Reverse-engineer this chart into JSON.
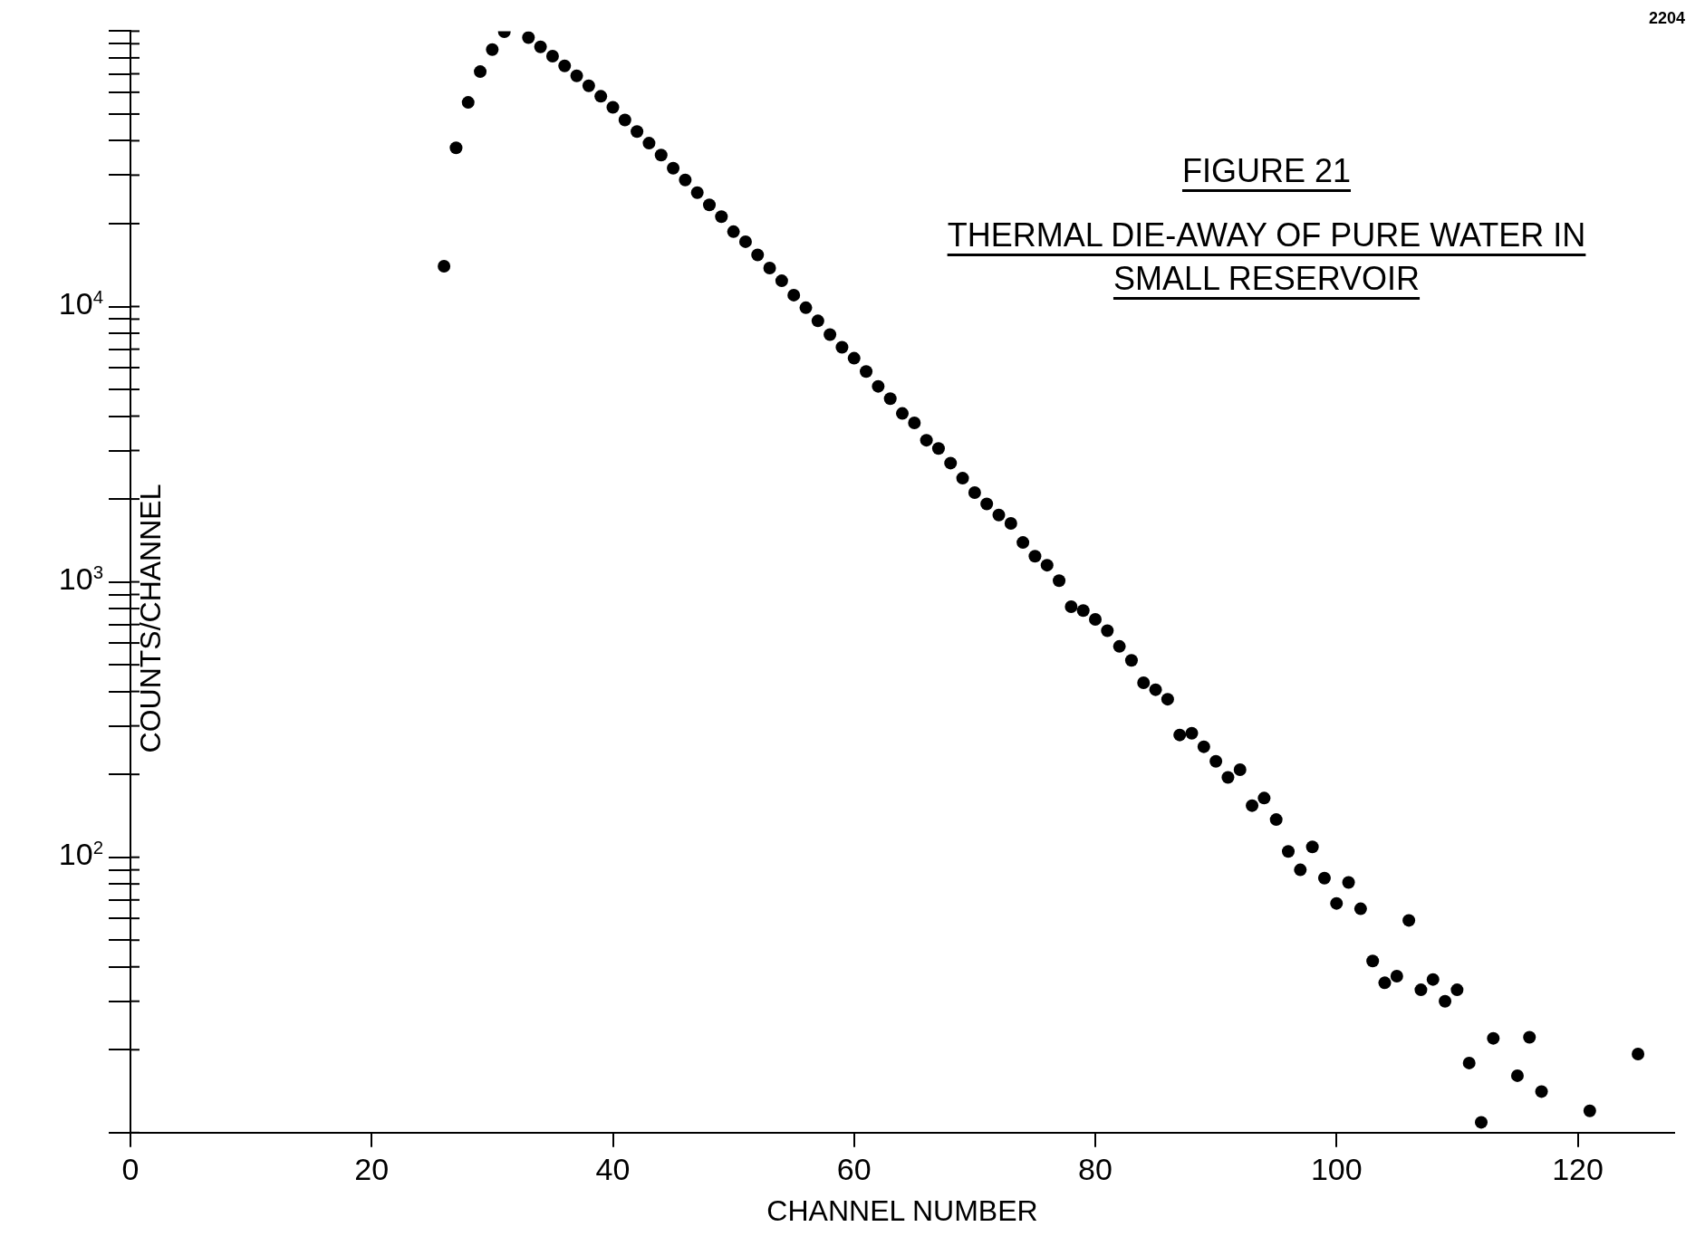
{
  "chart_data": {
    "type": "scatter",
    "title": "FIGURE 21",
    "subtitle": "THERMAL DIE-AWAY OF PURE WATER IN SMALL RESERVOIR",
    "xlabel": "CHANNEL NUMBER",
    "ylabel": "COUNTS/CHANNEL",
    "annotations": [
      "2204"
    ],
    "x": [
      26,
      27,
      28,
      29,
      30,
      31,
      33,
      34,
      35,
      36,
      37,
      38,
      39,
      40,
      41,
      42,
      43,
      44,
      45,
      46,
      47,
      48,
      49,
      50,
      51,
      52,
      53,
      54,
      55,
      56,
      57,
      58,
      59,
      60,
      61,
      62,
      63,
      64,
      65,
      66,
      67,
      68,
      69,
      70,
      71,
      72,
      73,
      74,
      75,
      76,
      77,
      78,
      79,
      80,
      81,
      82,
      83,
      84,
      85,
      86,
      87,
      88,
      89,
      90,
      91,
      92,
      93,
      94,
      95,
      96,
      97,
      98,
      99,
      100,
      101,
      102,
      103,
      104,
      105,
      106,
      107,
      108,
      109,
      110,
      111,
      112,
      113,
      115,
      116,
      117,
      121,
      125
    ],
    "series": [
      {
        "color": "#000000",
        "values": [
          14000,
          37700,
          55100,
          71300,
          85700,
          99500,
          94800,
          87700,
          81100,
          74800,
          68800,
          63300,
          58000,
          52900,
          47600,
          43200,
          39200,
          35500,
          31800,
          28800,
          25900,
          23400,
          21200,
          18700,
          17200,
          15400,
          13800,
          12400,
          11000,
          9900,
          8870,
          7910,
          7110,
          6490,
          5810,
          5130,
          4630,
          4090,
          3780,
          3270,
          3050,
          2700,
          2380,
          2110,
          1920,
          1750,
          1630,
          1390,
          1240,
          1150,
          1010,
          813,
          787,
          731,
          665,
          583,
          519,
          430,
          406,
          375,
          278,
          282,
          252,
          223,
          195,
          208,
          154,
          164,
          137,
          105,
          90,
          109,
          84,
          68,
          81,
          65,
          42,
          35,
          37,
          59,
          33,
          36,
          30,
          33,
          17.9,
          10.9,
          22,
          16.1,
          22.2,
          14.1,
          12.0,
          19.3
        ]
      }
    ],
    "marker": "circle",
    "log": "y",
    "xlim": [
      0,
      128
    ],
    "xticks": [
      0,
      20,
      40,
      60,
      80,
      100,
      120
    ],
    "ylim": [
      10,
      100000
    ],
    "yticks": [
      {
        "value": 10,
        "label": null
      },
      {
        "value": 20,
        "label": null
      },
      {
        "value": 30,
        "label": null
      },
      {
        "value": 40,
        "label": null
      },
      {
        "value": 50,
        "label": null
      },
      {
        "value": 60,
        "label": null
      },
      {
        "value": 70,
        "label": null
      },
      {
        "value": 80,
        "label": null
      },
      {
        "value": 90,
        "label": null
      },
      {
        "value": 100,
        "label": "10$^{2}$"
      },
      {
        "value": 200,
        "label": null
      },
      {
        "value": 300,
        "label": null
      },
      {
        "value": 400,
        "label": null
      },
      {
        "value": 500,
        "label": null
      },
      {
        "value": 600,
        "label": null
      },
      {
        "value": 700,
        "label": null
      },
      {
        "value": 800,
        "label": null
      },
      {
        "value": 900,
        "label": null
      },
      {
        "value": 1000,
        "label": "10$^{3}$"
      },
      {
        "value": 2000,
        "label": null
      },
      {
        "value": 3000,
        "label": null
      },
      {
        "value": 4000,
        "label": null
      },
      {
        "value": 5000,
        "label": null
      },
      {
        "value": 6000,
        "label": null
      },
      {
        "value": 7000,
        "label": null
      },
      {
        "value": 8000,
        "label": null
      },
      {
        "value": 9000,
        "label": null
      },
      {
        "value": 10000,
        "label": "10$^{4}$"
      },
      {
        "value": 20000,
        "label": null
      },
      {
        "value": 30000,
        "label": null
      },
      {
        "value": 40000,
        "label": null
      },
      {
        "value": 50000,
        "label": null
      },
      {
        "value": 60000,
        "label": null
      },
      {
        "value": 70000,
        "label": null
      },
      {
        "value": 80000,
        "label": null
      },
      {
        "value": 90000,
        "label": null
      },
      {
        "value": 100000,
        "label": null
      }
    ]
  }
}
